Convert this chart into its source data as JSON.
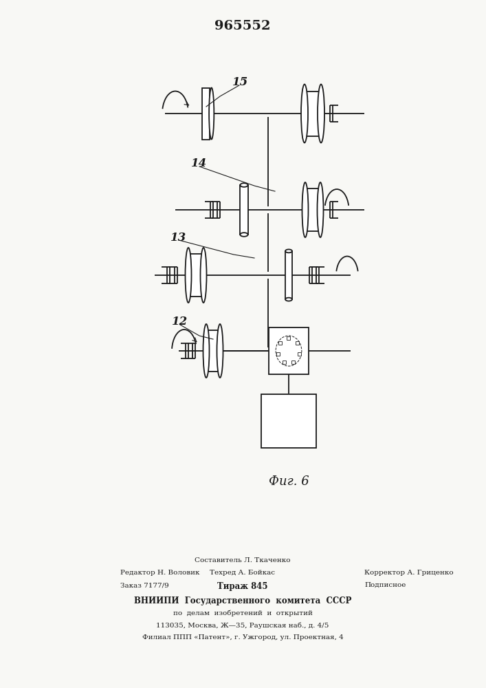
{
  "patent_number": "965552",
  "figure_label": "Фиг. 6",
  "bg_color": "#f8f8f5",
  "line_color": "#1a1a1a",
  "lw": 1.3,
  "footer": {
    "line1": "Составитель Л. Ткаченко",
    "line2_left": "Редактор Н. Воловик",
    "line2_mid": "Техред А. Бойкас",
    "line2_right": "Корректор А. Гриценко",
    "line3_left": "Заказ 7177/9",
    "line3_mid": "Тираж 845",
    "line3_right": "Подписное",
    "line4": "ВНИИПИ  Государственного  комитета  СССР",
    "line5": "по  делам  изобретений  и  открытий",
    "line6": "113035, Москва, Ж—35, Раушская наб., д. 4/5",
    "line7": "Филиал ППП «Патент», г. Ужгород, ул. Проектная, 4"
  }
}
